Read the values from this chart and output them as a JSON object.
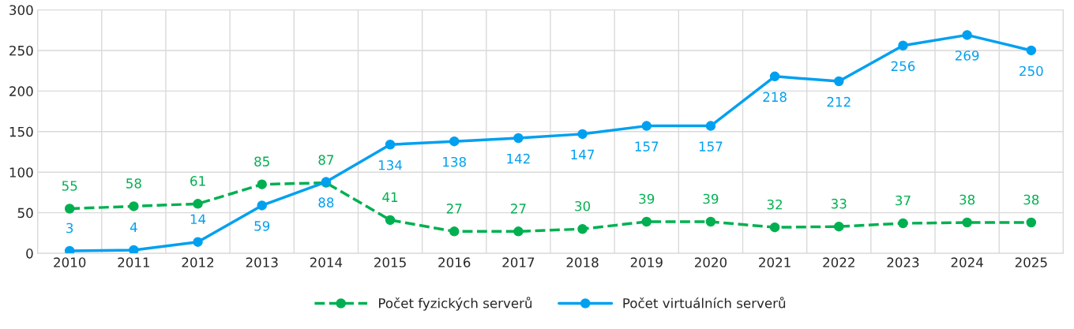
{
  "chart_data": {
    "type": "line",
    "categories": [
      "2010",
      "2011",
      "2012",
      "2013",
      "2014",
      "2015",
      "2016",
      "2017",
      "2018",
      "2019",
      "2020",
      "2021",
      "2022",
      "2023",
      "2024",
      "2025"
    ],
    "series": [
      {
        "name": "Počet fyzických serverů",
        "color": "#00b050",
        "line_style": "dashed",
        "values": [
          55,
          58,
          61,
          85,
          87,
          41,
          27,
          27,
          30,
          39,
          39,
          32,
          33,
          37,
          38,
          38
        ]
      },
      {
        "name": "Počet virtuálních serverů",
        "color": "#00a0f0",
        "line_style": "solid",
        "values": [
          3,
          4,
          14,
          59,
          88,
          134,
          138,
          142,
          147,
          157,
          157,
          218,
          212,
          256,
          269,
          250
        ]
      }
    ],
    "ylim": [
      0,
      300
    ],
    "yticks": [
      0,
      50,
      100,
      150,
      200,
      250,
      300
    ],
    "grid": true,
    "legend": "bottom",
    "marker": "circle",
    "data_labels": true
  }
}
